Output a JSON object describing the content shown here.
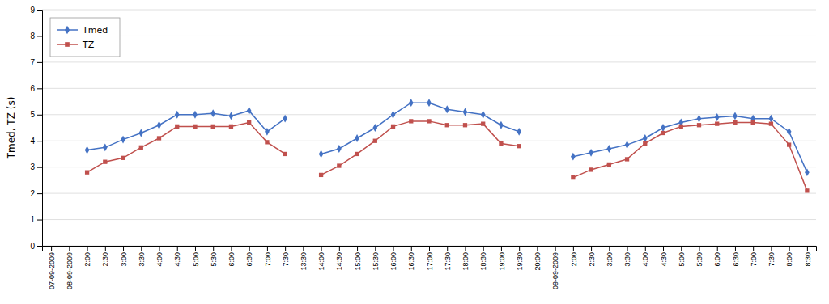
{
  "chart_data": {
    "type": "line",
    "ylabel": "Tmed, TZ (s)",
    "categories": [
      "07-09-2009",
      "08-09-2009",
      "2:00",
      "2:30",
      "3:00",
      "3:30",
      "4:00",
      "4:30",
      "5:00",
      "5:30",
      "6:00",
      "6:30",
      "7:00",
      "7:30",
      "13:30",
      "14:00",
      "14:30",
      "15:00",
      "15:30",
      "16:00",
      "16:30",
      "17:00",
      "17:30",
      "18:00",
      "18:30",
      "19:00",
      "19:30",
      "20:00",
      "09-09-2009",
      "2:00",
      "2:30",
      "3:00",
      "3:30",
      "4:00",
      "4:30",
      "5:00",
      "5:30",
      "6:00",
      "6:30",
      "7:00",
      "7:30",
      "8:00",
      "8:30"
    ],
    "series": [
      {
        "name": "Tmed",
        "color": "#4472C4",
        "marker": "diamond",
        "values": [
          null,
          null,
          3.65,
          3.75,
          4.05,
          4.3,
          4.6,
          5.0,
          5.0,
          5.05,
          4.95,
          5.15,
          4.35,
          4.85,
          null,
          3.5,
          3.7,
          4.1,
          4.5,
          5.0,
          5.45,
          5.45,
          5.2,
          5.1,
          5.0,
          4.6,
          4.35,
          null,
          null,
          3.4,
          3.55,
          3.7,
          3.85,
          4.1,
          4.5,
          4.7,
          4.85,
          4.9,
          4.95,
          4.85,
          4.85,
          4.35,
          2.8
        ]
      },
      {
        "name": "TZ",
        "color": "#C0504D",
        "marker": "square",
        "values": [
          null,
          null,
          2.8,
          3.2,
          3.35,
          3.75,
          4.1,
          4.55,
          4.55,
          4.55,
          4.55,
          4.7,
          3.95,
          3.5,
          null,
          2.7,
          3.05,
          3.5,
          4.0,
          4.55,
          4.75,
          4.75,
          4.6,
          4.6,
          4.65,
          3.9,
          3.8,
          null,
          null,
          2.6,
          2.9,
          3.1,
          3.3,
          3.9,
          4.3,
          4.55,
          4.6,
          4.65,
          4.7,
          4.7,
          4.65,
          3.85,
          2.1
        ]
      }
    ],
    "ylim": [
      0,
      9
    ],
    "yticks": [
      0,
      1,
      2,
      3,
      4,
      5,
      6,
      7,
      8,
      9
    ],
    "grid": true,
    "legend": "upper left"
  }
}
